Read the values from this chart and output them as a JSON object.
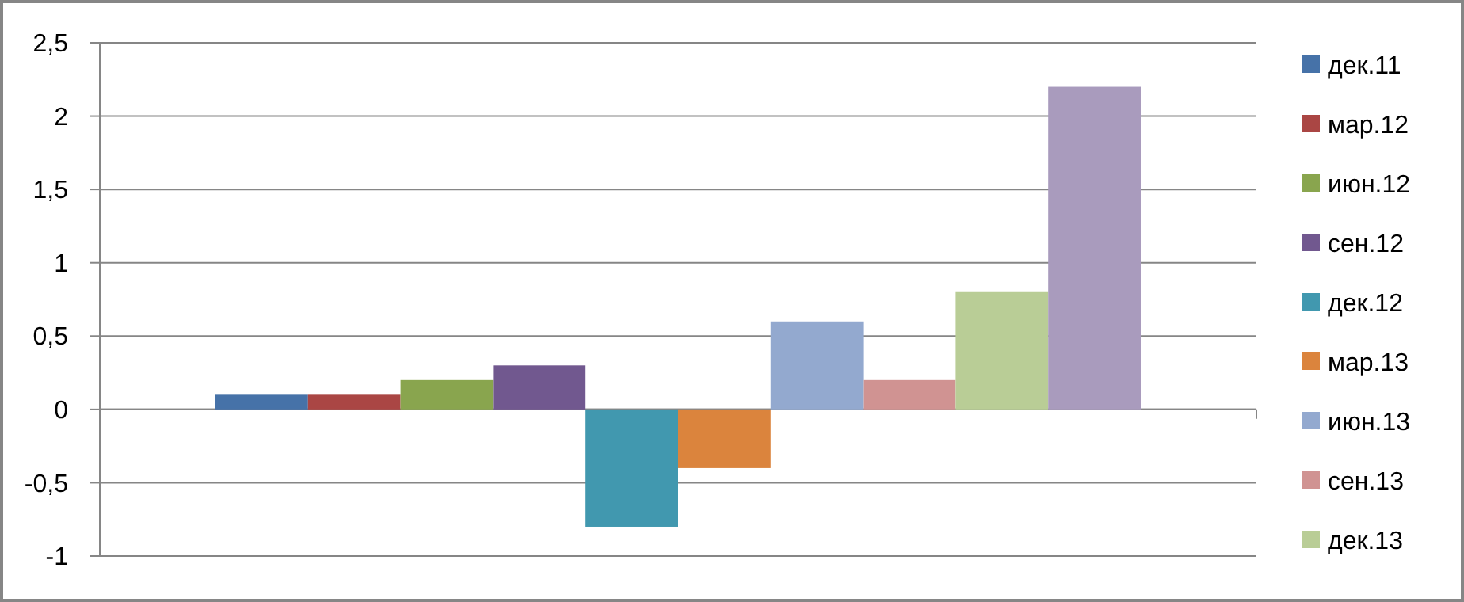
{
  "chart_data": {
    "type": "bar",
    "categories": [
      null
    ],
    "series": [
      {
        "name": "дек.11",
        "color": "#4672a8",
        "values": [
          0.1
        ]
      },
      {
        "name": "мар.12",
        "color": "#aa4644",
        "values": [
          0.1
        ]
      },
      {
        "name": "июн.12",
        "color": "#89a54e",
        "values": [
          0.2
        ]
      },
      {
        "name": "сен.12",
        "color": "#71588f",
        "values": [
          0.3
        ]
      },
      {
        "name": "дек.12",
        "color": "#4198af",
        "values": [
          -0.8
        ]
      },
      {
        "name": "мар.13",
        "color": "#db843d",
        "values": [
          -0.4
        ]
      },
      {
        "name": "июн.13",
        "color": "#93a9cf",
        "values": [
          0.6
        ]
      },
      {
        "name": "сен.13",
        "color": "#d09392",
        "values": [
          0.2
        ]
      },
      {
        "name": "дек.13",
        "color": "#b9cd96",
        "values": [
          0.8
        ]
      },
      {
        "color": "#a99bbd",
        "values": [
          2.2
        ]
      }
    ],
    "ylim": [
      -1,
      2.5
    ],
    "yticks": [
      -1,
      {
        "value": -0.5,
        "label": "-0,5"
      },
      0,
      {
        "value": 0.5,
        "label": "0,5"
      },
      1,
      {
        "value": 1.5,
        "label": "1,5"
      },
      2,
      {
        "value": 2.5,
        "label": "2,5"
      }
    ],
    "grid": "y",
    "legend": "right"
  }
}
